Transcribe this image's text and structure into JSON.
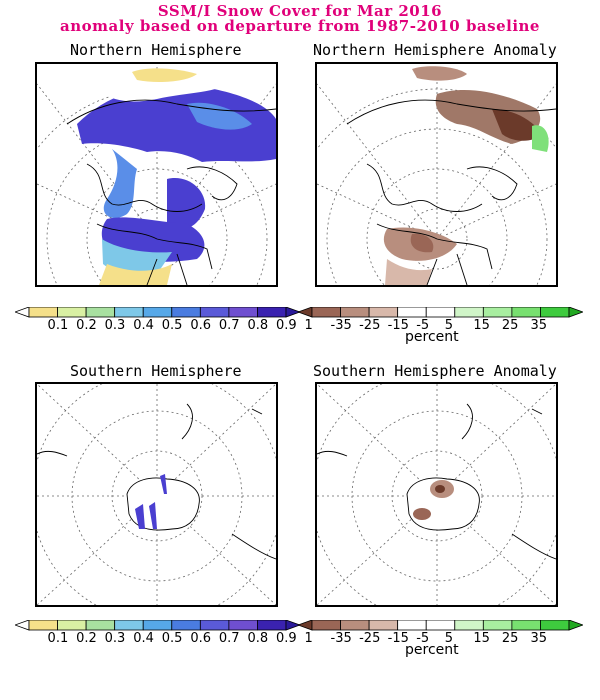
{
  "title_line1": "SSM/I Snow Cover for Mar 2016",
  "title_line2": "anomaly based on departure from 1987-2010 baseline",
  "panels": {
    "nh": {
      "title": "Northern Hemisphere"
    },
    "nha": {
      "title": "Northern Hemisphere Anomaly"
    },
    "sh": {
      "title": "Southern Hemisphere"
    },
    "sha": {
      "title": "Southern Hemisphere Anomaly"
    }
  },
  "colorbars": {
    "cover": {
      "labels": [
        "0.1",
        "0.2",
        "0.3",
        "0.4",
        "0.5",
        "0.6",
        "0.7",
        "0.8",
        "0.9",
        "1"
      ],
      "colors": [
        "#ffffff",
        "#f5e08a",
        "#d9f0a3",
        "#a8e0a0",
        "#7ec8e8",
        "#56a8e8",
        "#4a7ce0",
        "#5a5ad8",
        "#6f4fd0",
        "#3a22b0",
        "#2a1a9a"
      ]
    },
    "anomaly": {
      "labels": [
        "-35",
        "-25",
        "-15",
        "-5",
        "5",
        "15",
        "25",
        "35"
      ],
      "colors": [
        "#6b3a2a",
        "#9a6656",
        "#b88e7e",
        "#d8b8aa",
        "#ffffff",
        "#ffffff",
        "#d0f5c8",
        "#a8eea0",
        "#78e070",
        "#3ecb3e",
        "#22a822"
      ],
      "unit": "percent"
    }
  },
  "legend_colors": {
    "snow_high": "#4a3fd0",
    "snow_mid": "#5a8ee8",
    "snow_low": "#f5e08a",
    "anom_neg": "#a07868",
    "anom_pos": "#7fe07a"
  }
}
